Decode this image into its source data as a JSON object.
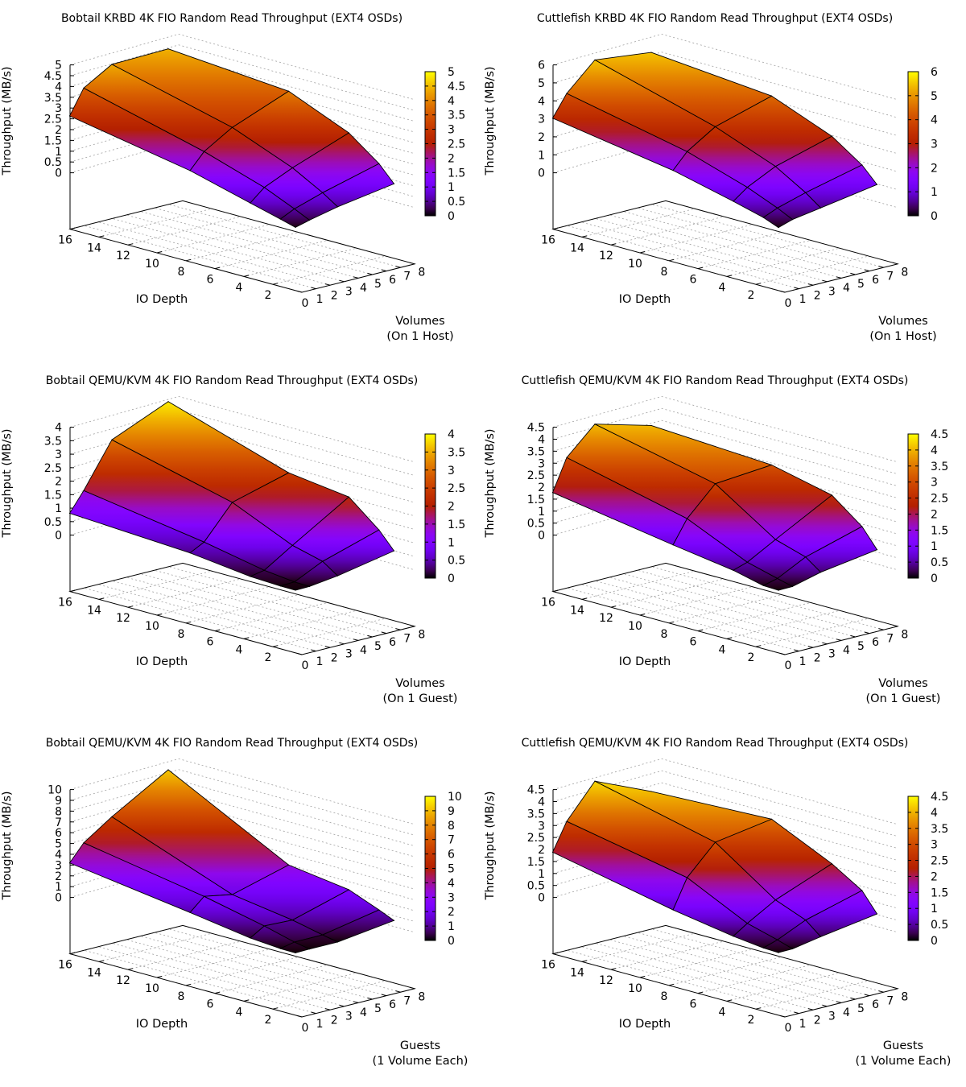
{
  "chart_data": [
    {
      "type": "surface3d",
      "title": "Bobtail KRBD 4K FIO Random Read Throughput (EXT4 OSDs)",
      "xlabel": "IO Depth",
      "ylabel_lines": [
        "Volumes",
        "(On 1 Host)"
      ],
      "zlabel": "Throughput (MB/s)",
      "x_ticks": [
        "16",
        "14",
        "12",
        "10",
        "8",
        "6",
        "4",
        "2"
      ],
      "y_ticks": [
        "0",
        "1",
        "2",
        "3",
        "4",
        "5",
        "6",
        "7",
        "8"
      ],
      "z_ticks": [
        "0",
        "0.5",
        "1",
        "1.5",
        "2",
        "2.5",
        "3",
        "3.5",
        "4",
        "4.5",
        "5"
      ],
      "cb_ticks": [
        "0",
        "0.5",
        "1",
        "1.5",
        "2",
        "2.5",
        "3",
        "3.5",
        "4",
        "4.5",
        "5"
      ],
      "xlim": [
        0,
        16
      ],
      "ylim": [
        0,
        8
      ],
      "zlim": [
        0,
        5
      ],
      "cblim": [
        0,
        5
      ],
      "io_depths": [
        1,
        2,
        4,
        8,
        16
      ],
      "volumes": [
        1,
        2,
        4,
        8
      ],
      "values": [
        [
          0.05,
          0.22,
          0.51,
          0.92
        ],
        [
          0.25,
          0.56,
          0.98,
          1.67
        ],
        [
          0.63,
          1.19,
          1.77,
          2.73
        ],
        [
          1.4,
          2.12,
          2.91,
          3.93
        ],
        [
          2.47,
          3.6,
          4.37,
          4.43
        ]
      ]
    },
    {
      "type": "surface3d",
      "title": "Cuttlefish KRBD 4K FIO Random Read Throughput (EXT4 OSDs)",
      "xlabel": "IO Depth",
      "ylabel_lines": [
        "Volumes",
        "(On 1 Host)"
      ],
      "zlabel": "Throughput (MB/s)",
      "x_ticks": [
        "16",
        "14",
        "12",
        "10",
        "8",
        "6",
        "4",
        "2"
      ],
      "y_ticks": [
        "0",
        "1",
        "2",
        "3",
        "4",
        "5",
        "6",
        "7",
        "8"
      ],
      "z_ticks": [
        "0",
        "1",
        "2",
        "3",
        "4",
        "5",
        "6"
      ],
      "cb_ticks": [
        "0",
        "1",
        "2",
        "3",
        "4",
        "5",
        "6"
      ],
      "xlim": [
        0,
        16
      ],
      "ylim": [
        0,
        8
      ],
      "zlim": [
        0,
        6
      ],
      "cblim": [
        0,
        6
      ],
      "io_depths": [
        1,
        2,
        4,
        8,
        16
      ],
      "volumes": [
        1,
        2,
        4,
        8
      ],
      "values": [
        [
          0.05,
          0.3,
          0.55,
          1.06
        ],
        [
          0.39,
          0.72,
          1.18,
          1.93
        ],
        [
          0.85,
          1.43,
          2.2,
          3.09
        ],
        [
          1.69,
          2.54,
          3.53,
          4.45
        ],
        [
          2.84,
          4.02,
          5.49,
          5.12
        ]
      ]
    },
    {
      "type": "surface3d",
      "title": "Bobtail QEMU/KVM 4K FIO Random Read Throughput (EXT4 OSDs)",
      "xlabel": "IO Depth",
      "ylabel_lines": [
        "Volumes",
        "(On 1 Guest)"
      ],
      "zlabel": "Throughput (MB/s)",
      "x_ticks": [
        "16",
        "14",
        "12",
        "10",
        "8",
        "6",
        "4",
        "2"
      ],
      "y_ticks": [
        "0",
        "1",
        "2",
        "3",
        "4",
        "5",
        "6",
        "7",
        "8"
      ],
      "z_ticks": [
        "0",
        "0.5",
        "1",
        "1.5",
        "2",
        "2.5",
        "3",
        "3.5",
        "4"
      ],
      "cb_ticks": [
        "0",
        "0.5",
        "1",
        "1.5",
        "2",
        "2.5",
        "3",
        "3.5",
        "4"
      ],
      "xlim": [
        0,
        16
      ],
      "ylim": [
        0,
        8
      ],
      "zlim": [
        0,
        4
      ],
      "cblim": [
        0,
        4
      ],
      "io_depths": [
        1,
        2,
        4,
        8,
        16
      ],
      "volumes": [
        1,
        2,
        4,
        8
      ],
      "values": [
        [
          0.02,
          0.03,
          0.16,
          0.56
        ],
        [
          0.03,
          0.05,
          0.55,
          1.19
        ],
        [
          0.09,
          0.19,
          0.85,
          2.12
        ],
        [
          0.38,
          0.65,
          1.86,
          2.43
        ],
        [
          0.68,
          1.39,
          3.01,
          3.9
        ]
      ]
    },
    {
      "type": "surface3d",
      "title": "Cuttlefish QEMU/KVM 4K FIO Random Read Throughput (EXT4 OSDs)",
      "xlabel": "IO Depth",
      "ylabel_lines": [
        "Volumes",
        "(On 1 Guest)"
      ],
      "zlabel": "Throughput (MB/s)",
      "x_ticks": [
        "16",
        "14",
        "12",
        "10",
        "8",
        "6",
        "4",
        "2"
      ],
      "y_ticks": [
        "0",
        "1",
        "2",
        "3",
        "4",
        "5",
        "6",
        "7",
        "8"
      ],
      "z_ticks": [
        "0",
        "0.5",
        "1",
        "1.5",
        "2",
        "2.5",
        "3",
        "3.5",
        "4",
        "4.5"
      ],
      "cb_ticks": [
        "0",
        "0.5",
        "1",
        "1.5",
        "2",
        "2.5",
        "3",
        "3.5",
        "4",
        "4.5"
      ],
      "xlim": [
        0,
        16
      ],
      "ylim": [
        0,
        8
      ],
      "zlim": [
        0,
        4.5
      ],
      "cblim": [
        0,
        4.5
      ],
      "io_depths": [
        1,
        2,
        4,
        8,
        16
      ],
      "volumes": [
        1,
        2,
        4,
        8
      ],
      "values": [
        [
          0.02,
          0.03,
          0.33,
          0.68
        ],
        [
          0.05,
          0.2,
          0.8,
          1.48
        ],
        [
          0.36,
          0.55,
          1.2,
          2.46
        ],
        [
          0.76,
          1.71,
          2.87,
          3.06
        ],
        [
          1.63,
          2.94,
          4.04,
          3.39
        ]
      ]
    },
    {
      "type": "surface3d",
      "title": "Bobtail QEMU/KVM 4K FIO Random Read Throughput (EXT4 OSDs)",
      "xlabel": "IO Depth",
      "ylabel_lines": [
        "Guests",
        "(1 Volume Each)"
      ],
      "zlabel": "Throughput (MB/s)",
      "x_ticks": [
        "16",
        "14",
        "12",
        "10",
        "8",
        "6",
        "4",
        "2"
      ],
      "y_ticks": [
        "0",
        "1",
        "2",
        "3",
        "4",
        "5",
        "6",
        "7",
        "8"
      ],
      "z_ticks": [
        "0",
        "1",
        "2",
        "3",
        "4",
        "5",
        "6",
        "7",
        "8",
        "9",
        "10"
      ],
      "cb_ticks": [
        "0",
        "1",
        "2",
        "3",
        "4",
        "5",
        "6",
        "7",
        "8",
        "9",
        "10"
      ],
      "xlim": [
        0,
        16
      ],
      "ylim": [
        0,
        8
      ],
      "zlim": [
        0,
        10
      ],
      "cblim": [
        0,
        10
      ],
      "io_depths": [
        1,
        2,
        4,
        8,
        16
      ],
      "guests": [
        1,
        2,
        4,
        8
      ],
      "values": [
        [
          0.02,
          0.05,
          0.04,
          0.72
        ],
        [
          0.05,
          0.33,
          0.34,
          1.34
        ],
        [
          0.3,
          1.09,
          0.98,
          2.48
        ],
        [
          1.2,
          2.37,
          1.88,
          3.31
        ],
        [
          2.87,
          4.41,
          6.17,
          9.21
        ]
      ]
    },
    {
      "type": "surface3d",
      "title": "Cuttlefish QEMU/KVM 4K FIO Random Read Throughput (EXT4 OSDs)",
      "xlabel": "IO Depth",
      "ylabel_lines": [
        "Guests",
        "(1 Volume Each)"
      ],
      "zlabel": "Throughput (MB/s)",
      "x_ticks": [
        "16",
        "14",
        "12",
        "10",
        "8",
        "6",
        "4",
        "2"
      ],
      "y_ticks": [
        "0",
        "1",
        "2",
        "3",
        "4",
        "5",
        "6",
        "7",
        "8"
      ],
      "z_ticks": [
        "0",
        "0.5",
        "1",
        "1.5",
        "2",
        "2.5",
        "3",
        "3.5",
        "4",
        "4.5"
      ],
      "cb_ticks": [
        "0",
        "0.5",
        "1",
        "1.5",
        "2",
        "2.5",
        "3",
        "3.5",
        "4",
        "4.5"
      ],
      "xlim": [
        0,
        16
      ],
      "ylim": [
        0,
        8
      ],
      "zlim": [
        0,
        4.5
      ],
      "cblim": [
        0,
        4.5
      ],
      "io_depths": [
        1,
        2,
        4,
        8,
        16
      ],
      "guests": [
        1,
        2,
        4,
        8
      ],
      "values": [
        [
          0.02,
          0.03,
          0.24,
          0.6
        ],
        [
          0.05,
          0.24,
          0.77,
          1.41
        ],
        [
          0.21,
          0.6,
          1.28,
          2.2
        ],
        [
          0.65,
          1.85,
          3.03,
          3.4
        ],
        [
          1.74,
          2.88,
          4.26,
          3.24
        ]
      ]
    }
  ]
}
